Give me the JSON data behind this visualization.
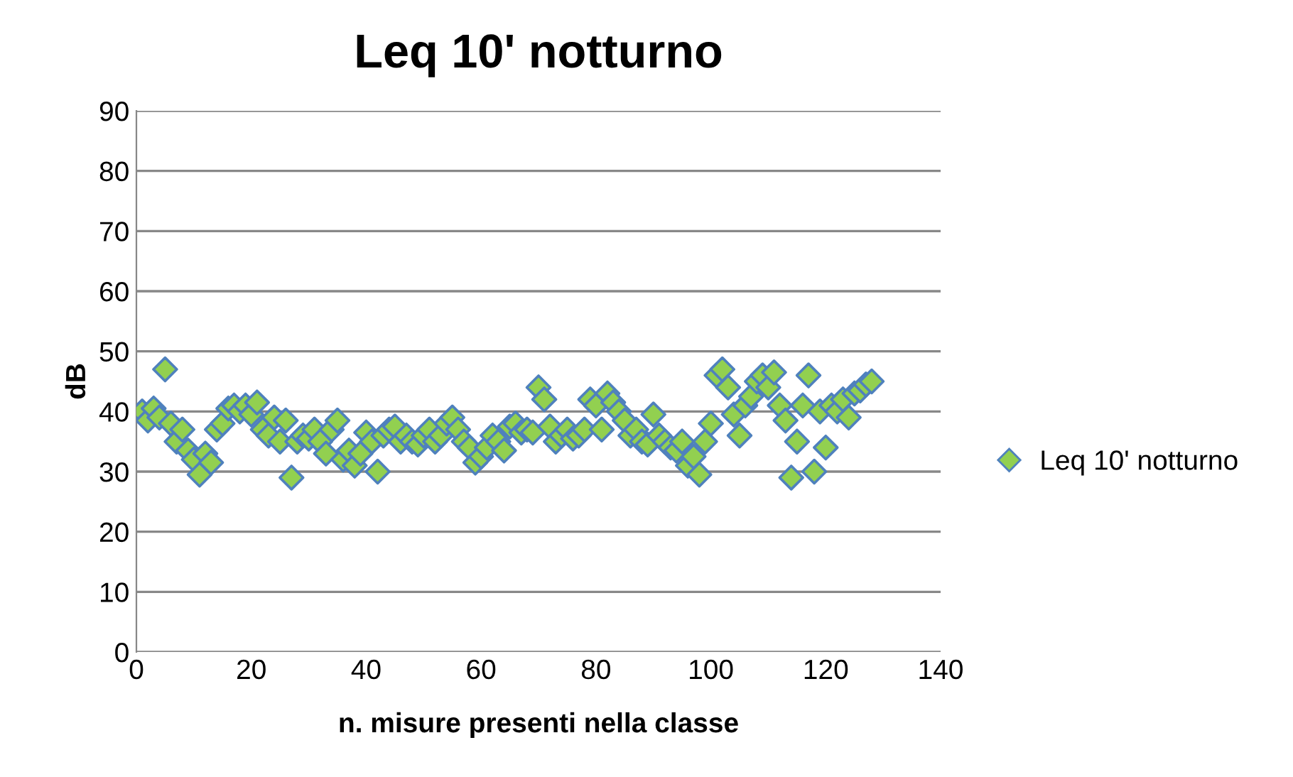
{
  "chart_data": {
    "type": "scatter",
    "title": "Leq 10' notturno",
    "xlabel": "n. misure presenti nella classe",
    "ylabel": "dB",
    "x": [
      1,
      2,
      3,
      4,
      5,
      6,
      7,
      8,
      9,
      10,
      11,
      12,
      13,
      14,
      15,
      16,
      17,
      18,
      19,
      20,
      21,
      22,
      23,
      24,
      25,
      26,
      27,
      28,
      29,
      30,
      31,
      32,
      33,
      34,
      35,
      36,
      37,
      38,
      39,
      40,
      41,
      42,
      43,
      44,
      45,
      46,
      47,
      48,
      49,
      50,
      51,
      52,
      53,
      54,
      55,
      56,
      57,
      58,
      59,
      60,
      61,
      62,
      63,
      64,
      65,
      66,
      67,
      68,
      69,
      70,
      71,
      72,
      73,
      74,
      75,
      76,
      77,
      78,
      79,
      80,
      81,
      82,
      83,
      84,
      85,
      86,
      87,
      88,
      89,
      90,
      91,
      92,
      93,
      94,
      95,
      96,
      97,
      98,
      99,
      100,
      101,
      102,
      103,
      104,
      105,
      106,
      107,
      108,
      109,
      110,
      111,
      112,
      113,
      114,
      115,
      116,
      117,
      118,
      119,
      120,
      121,
      122,
      123,
      124,
      125,
      126,
      127,
      128
    ],
    "series": [
      {
        "name": "Leq 10' notturno",
        "color": "#92d050",
        "values": [
          40,
          38.5,
          40.5,
          39,
          47,
          38,
          35,
          37,
          33.5,
          32,
          29.5,
          33,
          31.5,
          37,
          38,
          40.5,
          41,
          40,
          41,
          39.5,
          41.5,
          37,
          36,
          39,
          35,
          38.5,
          29,
          35,
          36,
          35.5,
          37,
          35,
          33,
          37,
          38.5,
          32,
          33.5,
          31,
          33,
          36.5,
          35,
          30,
          36,
          37,
          37.5,
          35,
          36,
          35,
          34.5,
          36,
          37,
          35,
          36,
          38,
          39,
          37,
          35,
          34,
          31.5,
          32.5,
          34,
          36,
          35,
          33.5,
          37.5,
          38,
          36.5,
          37,
          36.5,
          44,
          42,
          37.5,
          35,
          36,
          37,
          35.5,
          36,
          37,
          42,
          41,
          37,
          43,
          41.5,
          40,
          38.5,
          36,
          37,
          35,
          34.5,
          39.5,
          36,
          35,
          34,
          33.5,
          35,
          31,
          32.5,
          29.5,
          35,
          38,
          46,
          47,
          44,
          39.5,
          36,
          41,
          42.5,
          45,
          46,
          44,
          46.5,
          41,
          38.5,
          29,
          35,
          41,
          46,
          30,
          40,
          34,
          41,
          40,
          42,
          39,
          43,
          43.5,
          44.5,
          45
        ]
      }
    ],
    "xlim": [
      0,
      140
    ],
    "xticks": [
      0,
      20,
      40,
      60,
      80,
      100,
      120,
      140
    ],
    "ylim": [
      0,
      90
    ],
    "yticks": [
      0,
      10,
      20,
      30,
      40,
      50,
      60,
      70,
      80,
      90
    ],
    "grid": "y",
    "legend": "right",
    "marker": "diamond"
  }
}
